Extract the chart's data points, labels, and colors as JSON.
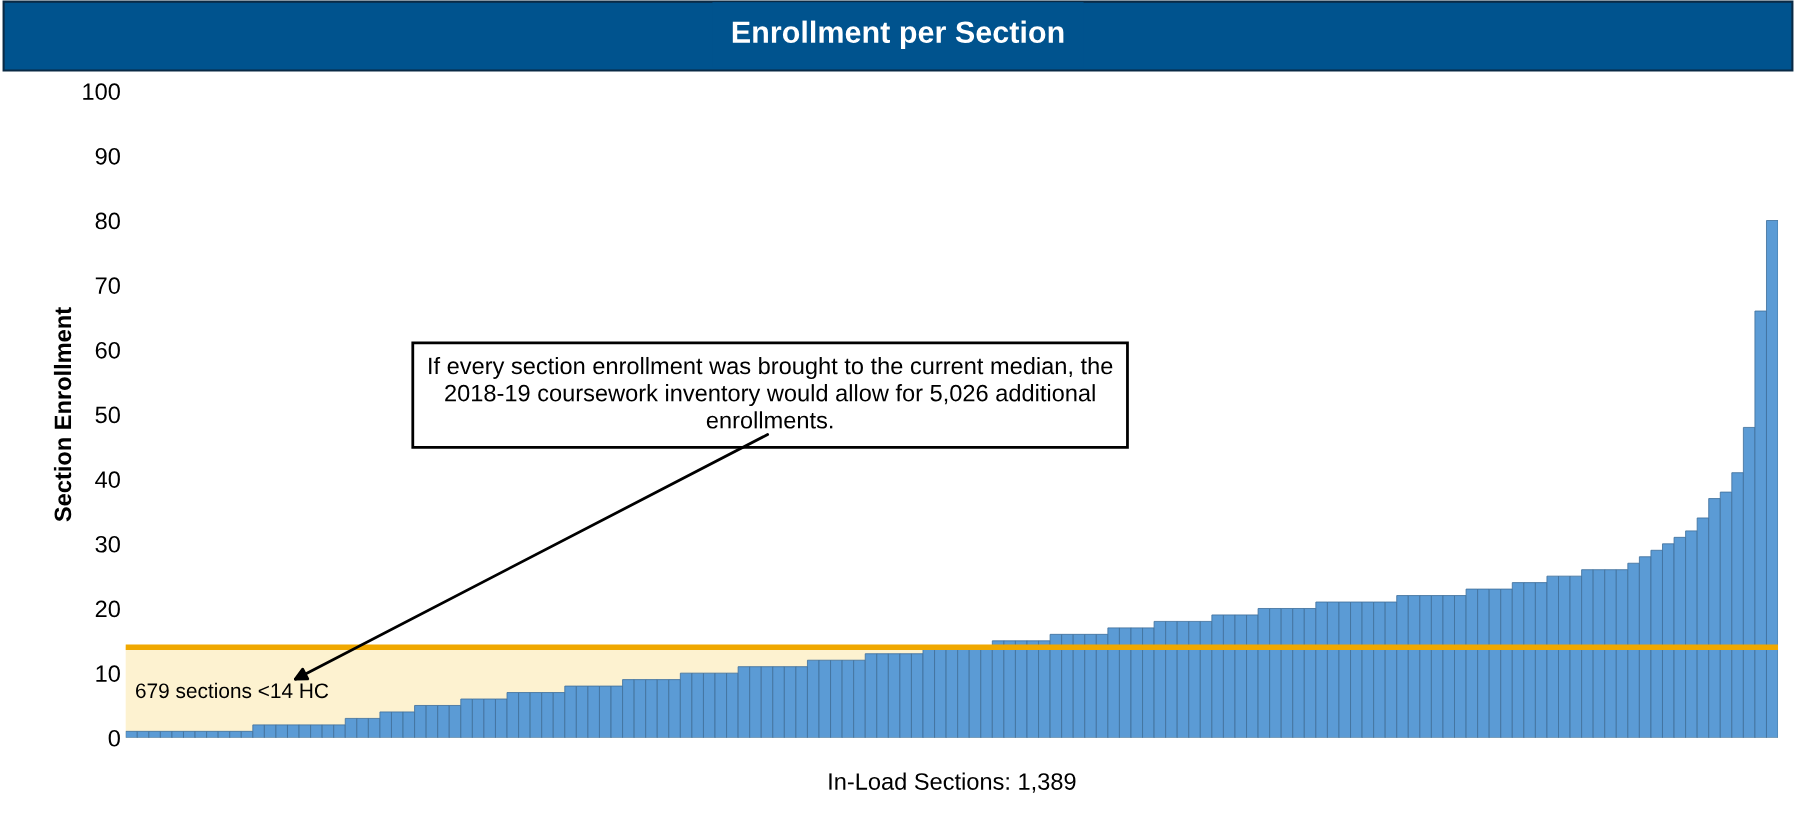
{
  "chart_data": {
    "type": "bar",
    "title": "Enrollment per Section",
    "xlabel": "In-Load Sections: 1,389",
    "ylabel": "Section Enrollment",
    "categories": [
      null,
      null,
      null,
      null,
      null,
      null,
      null,
      null,
      null,
      null,
      null,
      null,
      null,
      null,
      null,
      null,
      null,
      null,
      null,
      null,
      null,
      null,
      null,
      null,
      null,
      null,
      null,
      null,
      null,
      null,
      null,
      null,
      null,
      null,
      null,
      null,
      null,
      null,
      null,
      null,
      null,
      null,
      null,
      null,
      null,
      null,
      null,
      null,
      null,
      null,
      null,
      null,
      null,
      null,
      null,
      null,
      null,
      null,
      null,
      null,
      null,
      null,
      null,
      null,
      null,
      null,
      null,
      null,
      null,
      null,
      null,
      null,
      null,
      null,
      null,
      null,
      null,
      null,
      null,
      null,
      null,
      null,
      null,
      null,
      null,
      null,
      null,
      null,
      null,
      null,
      null,
      null,
      null,
      null,
      null,
      null,
      null,
      null,
      null,
      null,
      null,
      null,
      null,
      null,
      null,
      null,
      null,
      null,
      null,
      null,
      null,
      null,
      null,
      null,
      null,
      null,
      null,
      null,
      null,
      null,
      null,
      null,
      null,
      null,
      null,
      null,
      null,
      null,
      null,
      null,
      null,
      null,
      null,
      null,
      null,
      null,
      null,
      null,
      null,
      null,
      null,
      null,
      null
    ],
    "values": [
      1,
      1,
      1,
      1,
      1,
      1,
      1,
      1,
      1,
      1,
      1,
      2,
      2,
      2,
      2,
      2,
      2,
      2,
      2,
      3,
      3,
      3,
      4,
      4,
      4,
      5,
      5,
      5,
      5,
      6,
      6,
      6,
      6,
      7,
      7,
      7,
      7,
      7,
      8,
      8,
      8,
      8,
      8,
      9,
      9,
      9,
      9,
      9,
      10,
      10,
      10,
      10,
      10,
      11,
      11,
      11,
      11,
      11,
      11,
      12,
      12,
      12,
      12,
      12,
      13,
      13,
      13,
      13,
      13,
      14,
      14,
      14,
      14,
      14,
      14,
      15,
      15,
      15,
      15,
      15,
      16,
      16,
      16,
      16,
      16,
      17,
      17,
      17,
      17,
      18,
      18,
      18,
      18,
      18,
      19,
      19,
      19,
      19,
      20,
      20,
      20,
      20,
      20,
      21,
      21,
      21,
      21,
      21,
      21,
      21,
      22,
      22,
      22,
      22,
      22,
      22,
      23,
      23,
      23,
      23,
      24,
      24,
      24,
      25,
      25,
      25,
      26,
      26,
      26,
      26,
      27,
      28,
      29,
      30,
      31,
      32,
      34,
      37,
      38,
      41,
      48,
      66,
      80
    ],
    "color": "#5b9bd5",
    "ylim": [
      0,
      100
    ],
    "yticks": [
      0,
      10,
      20,
      30,
      40,
      50,
      60,
      70,
      80,
      90,
      100
    ],
    "grid": false,
    "tick_labels": "y",
    "ref_lines": [
      {
        "axis": "y",
        "value": 14,
        "color": "#f0a800"
      }
    ],
    "bands": [
      {
        "axis": "y",
        "from": 0,
        "to": 14,
        "label": "679 sections <14 HC",
        "color": "#fdf2d0"
      }
    ],
    "annotations": [
      "If every section enrollment was brought to the current median, the 2018-19 coursework inventory would allow for 5,026 additional enrollments."
    ]
  }
}
